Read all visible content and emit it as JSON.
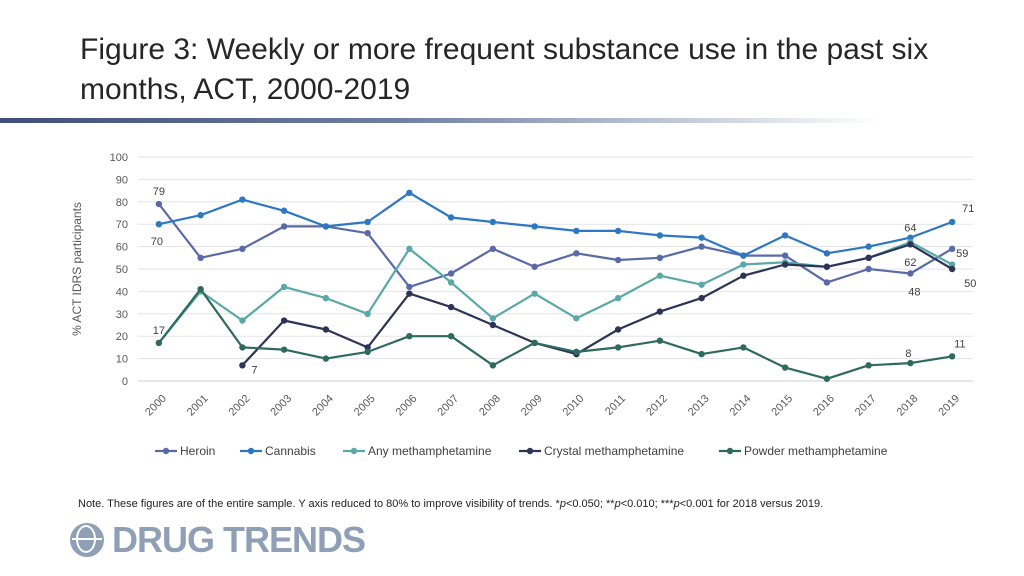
{
  "title": "Figure 3: Weekly or more frequent substance use in the past six months, ACT, 2000-2019",
  "note_prefix": "Note. These figures are of the entire sample. Y axis reduced to 80% to improve visibility of trends. *",
  "note_p": "p",
  "note_part1": "<0.050; **",
  "note_part2": "<0.010; ***",
  "note_part3": "<0.001 for 2018 versus 2019.",
  "logo_text": "DRUG TRENDS",
  "chart_data": {
    "type": "line",
    "title": "",
    "xlabel": "",
    "ylabel": "% ACT IDRS participants",
    "ylim": [
      0,
      100
    ],
    "yticks": [
      0,
      10,
      20,
      30,
      40,
      50,
      60,
      70,
      80,
      90,
      100
    ],
    "grid": true,
    "legend_position": "bottom",
    "categories": [
      "2000",
      "2001",
      "2002",
      "2003",
      "2004",
      "2005",
      "2006",
      "2007",
      "2008",
      "2009",
      "2010",
      "2011",
      "2012",
      "2013",
      "2014",
      "2015",
      "2016",
      "2017",
      "2018",
      "2019"
    ],
    "series": [
      {
        "name": "Heroin",
        "color": "#5a6aa8",
        "values": [
          79,
          55,
          59,
          69,
          69,
          66,
          42,
          48,
          59,
          51,
          57,
          54,
          55,
          60,
          56,
          56,
          44,
          50,
          48,
          59
        ]
      },
      {
        "name": "Cannabis",
        "color": "#2e78c2",
        "values": [
          70,
          74,
          81,
          76,
          69,
          71,
          84,
          73,
          71,
          69,
          67,
          67,
          65,
          64,
          56,
          65,
          57,
          60,
          64,
          71
        ]
      },
      {
        "name": "Any methamphetamine",
        "color": "#5aa8a8",
        "values": [
          17,
          40,
          27,
          42,
          37,
          30,
          59,
          44,
          28,
          39,
          28,
          37,
          47,
          43,
          52,
          53,
          51,
          55,
          62,
          52
        ]
      },
      {
        "name": "Crystal methamphetamine",
        "color": "#2c3557",
        "values": [
          null,
          null,
          7,
          27,
          23,
          15,
          39,
          33,
          25,
          17,
          12,
          23,
          31,
          37,
          47,
          52,
          51,
          55,
          61,
          50
        ]
      },
      {
        "name": "Powder methamphetamine",
        "color": "#2e6a5e",
        "values": [
          17,
          41,
          15,
          14,
          10,
          13,
          20,
          20,
          7,
          17,
          13,
          15,
          18,
          12,
          15,
          6,
          1,
          7,
          8,
          11
        ]
      }
    ],
    "data_labels": [
      {
        "series": "Heroin",
        "x": "2000",
        "text": "79"
      },
      {
        "series": "Cannabis",
        "x": "2000",
        "text": "70"
      },
      {
        "series": "Any methamphetamine",
        "x": "2000",
        "text": "17"
      },
      {
        "series": "Crystal methamphetamine",
        "x": "2002",
        "text": "7"
      },
      {
        "series": "Cannabis",
        "x": "2018",
        "text": "64"
      },
      {
        "series": "Any methamphetamine",
        "x": "2018",
        "text": "62"
      },
      {
        "series": "Heroin",
        "x": "2018",
        "text": "48"
      },
      {
        "series": "Powder methamphetamine",
        "x": "2018",
        "text": "8"
      },
      {
        "series": "Cannabis",
        "x": "2019",
        "text": "71"
      },
      {
        "series": "Heroin",
        "x": "2019",
        "text": "59"
      },
      {
        "series": "Crystal methamphetamine",
        "x": "2019",
        "text": "50"
      },
      {
        "series": "Powder methamphetamine",
        "x": "2019",
        "text": "11"
      }
    ]
  }
}
